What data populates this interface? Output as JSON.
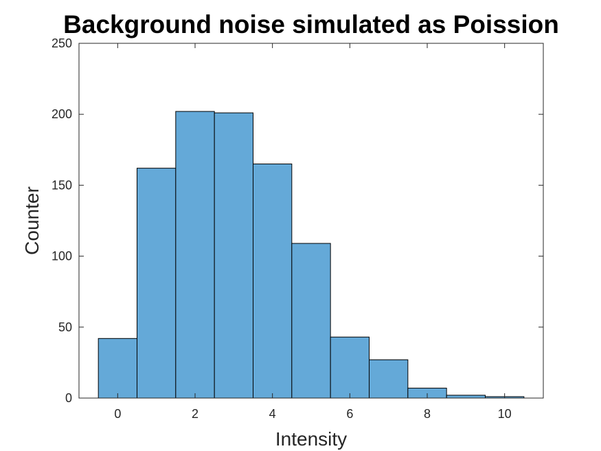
{
  "chart_data": {
    "type": "bar",
    "title": "Background noise simulated as Poission",
    "xlabel": "Intensity",
    "ylabel": "Counter",
    "bins": [
      {
        "center": 0,
        "count": 42
      },
      {
        "center": 1,
        "count": 162
      },
      {
        "center": 2,
        "count": 202
      },
      {
        "center": 3,
        "count": 201
      },
      {
        "center": 4,
        "count": 165
      },
      {
        "center": 5,
        "count": 109
      },
      {
        "center": 6,
        "count": 43
      },
      {
        "center": 7,
        "count": 27
      },
      {
        "center": 8,
        "count": 7
      },
      {
        "center": 9,
        "count": 2
      },
      {
        "center": 10,
        "count": 1
      }
    ],
    "bin_width": 1,
    "xlim": [
      -1,
      11
    ],
    "ylim": [
      0,
      250
    ],
    "xticks": [
      0,
      2,
      4,
      6,
      8,
      10
    ],
    "yticks": [
      0,
      50,
      100,
      150,
      200,
      250
    ],
    "bar_color": "#64a9d8",
    "edge_color": "#000000",
    "grid": false,
    "legend": "none"
  }
}
